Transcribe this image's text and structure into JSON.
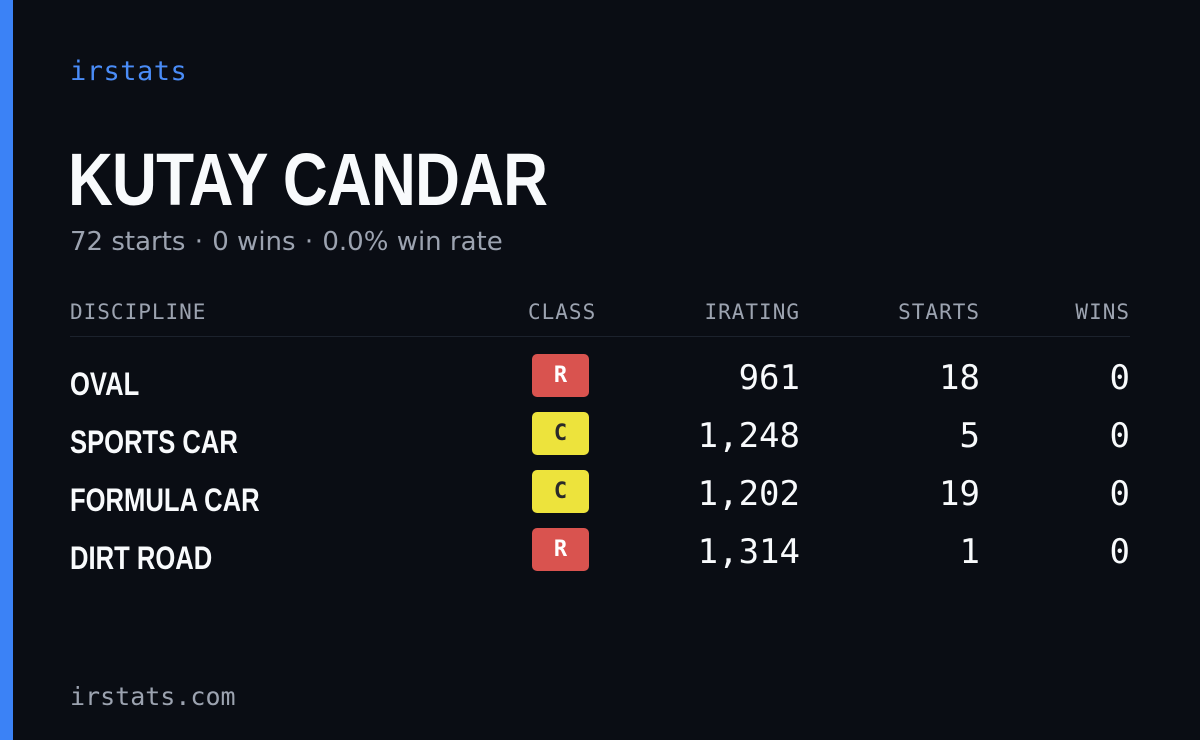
{
  "brand": "irstats",
  "player": {
    "name": "KUTAY CANDAR"
  },
  "summary": {
    "starts": "72 starts",
    "wins": "0 wins",
    "win_rate": "0.0% win rate",
    "separator": "·"
  },
  "table": {
    "headers": {
      "discipline": "DISCIPLINE",
      "class": "CLASS",
      "irating": "IRATING",
      "starts": "STARTS",
      "wins": "WINS"
    },
    "rows": [
      {
        "discipline": "OVAL",
        "class": "R",
        "irating": "961",
        "starts": "18",
        "wins": "0"
      },
      {
        "discipline": "SPORTS CAR",
        "class": "C",
        "irating": "1,248",
        "starts": "5",
        "wins": "0"
      },
      {
        "discipline": "FORMULA CAR",
        "class": "C",
        "irating": "1,202",
        "starts": "19",
        "wins": "0"
      },
      {
        "discipline": "DIRT ROAD",
        "class": "R",
        "irating": "1,314",
        "starts": "1",
        "wins": "0"
      }
    ]
  },
  "colors": {
    "accent": "#3b82f6",
    "background": "#0a0d14",
    "class_r": "#d9534f",
    "class_c": "#ede33c"
  },
  "footer": {
    "url": "irstats.com"
  }
}
